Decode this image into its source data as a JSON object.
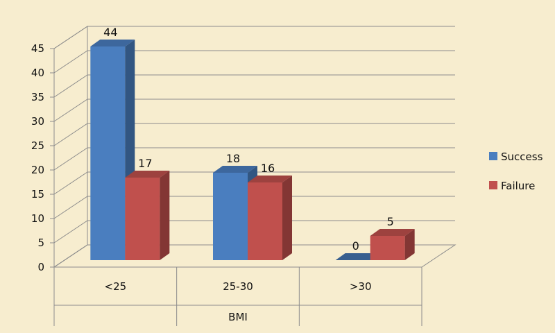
{
  "chart_data": {
    "type": "bar",
    "style": "3d-clustered-column",
    "categories": [
      "<25",
      "25-30",
      ">30"
    ],
    "series": [
      {
        "name": "Success",
        "values": [
          44,
          18,
          0
        ],
        "color": "#4a7ebf"
      },
      {
        "name": "Failure",
        "values": [
          17,
          16,
          5
        ],
        "color": "#c0504d"
      }
    ],
    "xlabel": "BMI",
    "ylabel": "",
    "ylim": [
      0,
      45
    ],
    "yticks": [
      0,
      5,
      10,
      15,
      20,
      25,
      30,
      35,
      40,
      45
    ],
    "grid": true,
    "legend": "right"
  },
  "colors": {
    "background": "#f7edcf",
    "gridline": "#8c8c8c"
  }
}
